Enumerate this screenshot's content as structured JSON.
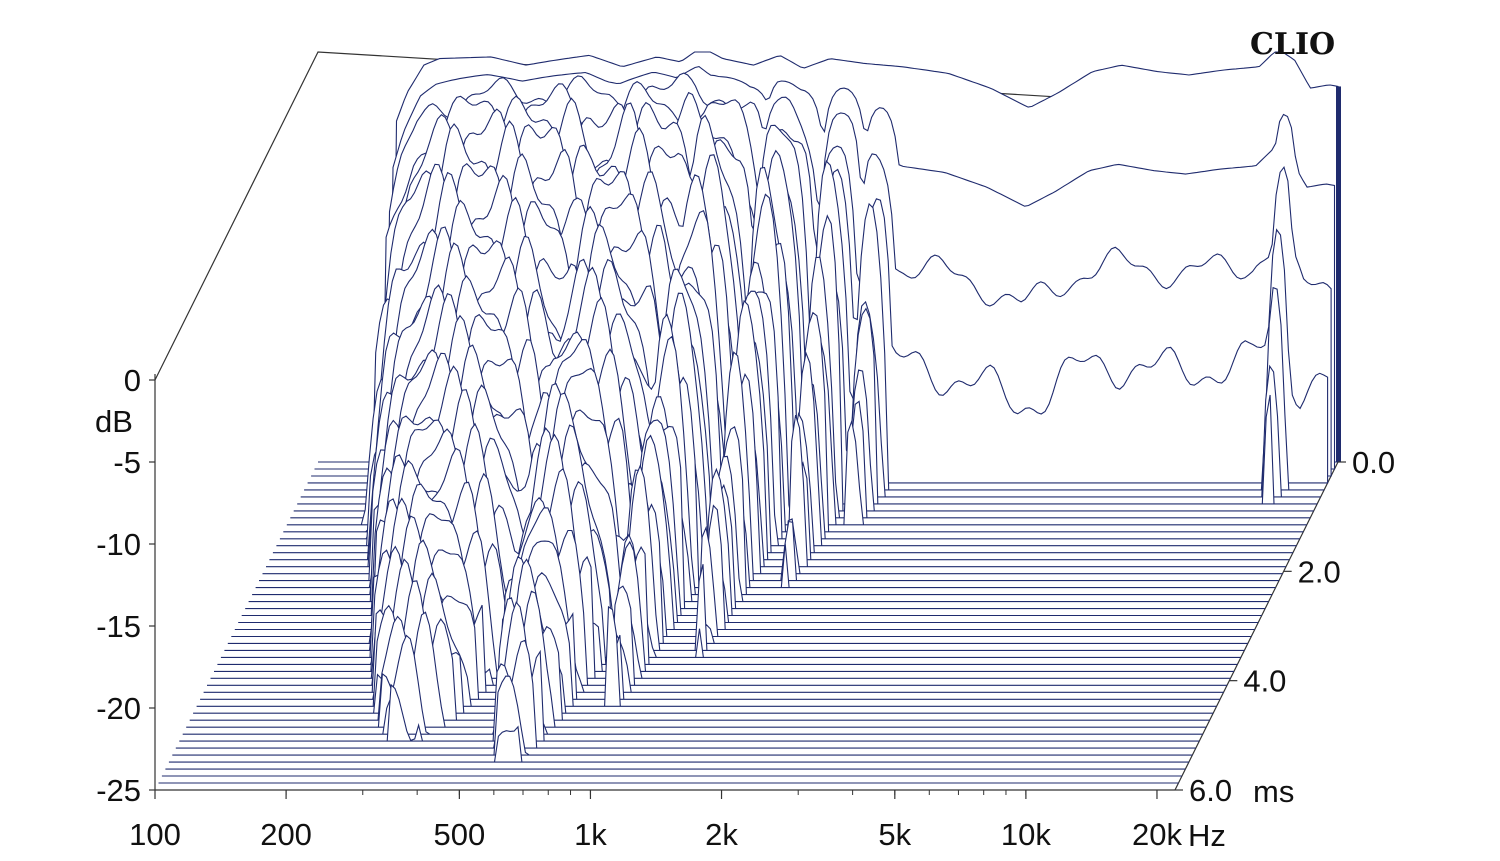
{
  "chart_data": {
    "type": "area",
    "brand": "CLIO",
    "x_axis": {
      "scale": "log",
      "range": [
        100,
        22000
      ],
      "ticks": [
        {
          "value": 100,
          "label": "100"
        },
        {
          "value": 200,
          "label": "200"
        },
        {
          "value": 500,
          "label": "500"
        },
        {
          "value": 1000,
          "label": "1k"
        },
        {
          "value": 2000,
          "label": "2k"
        },
        {
          "value": 5000,
          "label": "5k"
        },
        {
          "value": 10000,
          "label": "10k"
        },
        {
          "value": 20000,
          "label": "20k"
        }
      ],
      "unit": "Hz"
    },
    "y_axis": {
      "range": [
        -25,
        0
      ],
      "ticks": [
        {
          "value": 0,
          "label": "0"
        },
        {
          "value": -5,
          "label": "-5"
        },
        {
          "value": -10,
          "label": "-10"
        },
        {
          "value": -15,
          "label": "-15"
        },
        {
          "value": -20,
          "label": "-20"
        },
        {
          "value": -25,
          "label": "-25"
        }
      ],
      "unit": "dB"
    },
    "z_axis": {
      "range": [
        0,
        6.0
      ],
      "ticks": [
        {
          "value": 0.0,
          "label": "0.0"
        },
        {
          "value": 2.0,
          "label": "2.0"
        },
        {
          "value": 4.0,
          "label": "4.0"
        },
        {
          "value": 6.0,
          "label": "6.0"
        }
      ],
      "unit": "ms"
    },
    "slices": {
      "count": 48,
      "time_start": 0.0,
      "time_end": 6.0,
      "low_cut_hz": 150,
      "floor_db": -25,
      "initial_response_points": [
        [
          150,
          -4.5
        ],
        [
          160,
          -2.5
        ],
        [
          175,
          -0.8
        ],
        [
          190,
          -0.4
        ],
        [
          250,
          -0.3
        ],
        [
          300,
          -0.8
        ],
        [
          350,
          -0.5
        ],
        [
          420,
          -0.2
        ],
        [
          500,
          -0.9
        ],
        [
          600,
          -0.3
        ],
        [
          680,
          -0.6
        ],
        [
          760,
          0.3
        ],
        [
          850,
          -0.4
        ],
        [
          1000,
          -0.8
        ],
        [
          1150,
          -0.2
        ],
        [
          1300,
          -1.0
        ],
        [
          1500,
          -0.4
        ],
        [
          1800,
          -0.7
        ],
        [
          2200,
          -0.9
        ],
        [
          2800,
          -1.3
        ],
        [
          3500,
          -2.2
        ],
        [
          4300,
          -3.4
        ],
        [
          5000,
          -2.5
        ],
        [
          6000,
          -1.2
        ],
        [
          7000,
          -0.8
        ],
        [
          8500,
          -1.2
        ],
        [
          10000,
          -1.4
        ],
        [
          12000,
          -1.1
        ],
        [
          14500,
          -0.9
        ],
        [
          16000,
          0.2
        ],
        [
          17500,
          -0.5
        ],
        [
          19000,
          -2.2
        ],
        [
          21000,
          -2.0
        ],
        [
          22000,
          -2.1
        ]
      ],
      "decay_regions": [
        {
          "center_hz": 330,
          "width_oct": 1.3,
          "persist_ms": 5.2
        },
        {
          "center_hz": 600,
          "width_oct": 0.8,
          "persist_ms": 5.6
        },
        {
          "center_hz": 900,
          "width_oct": 0.35,
          "persist_ms": 4.6
        },
        {
          "center_hz": 1250,
          "width_oct": 0.25,
          "persist_ms": 3.6
        },
        {
          "center_hz": 1650,
          "width_oct": 0.2,
          "persist_ms": 2.3
        },
        {
          "center_hz": 2000,
          "width_oct": 0.2,
          "persist_ms": 1.3
        },
        {
          "center_hz": 17000,
          "width_oct": 0.15,
          "persist_ms": 0.9
        }
      ]
    },
    "series": [
      {
        "values": [],
        "color": "#1f2b6e"
      }
    ],
    "grid": false,
    "legend": "none"
  }
}
